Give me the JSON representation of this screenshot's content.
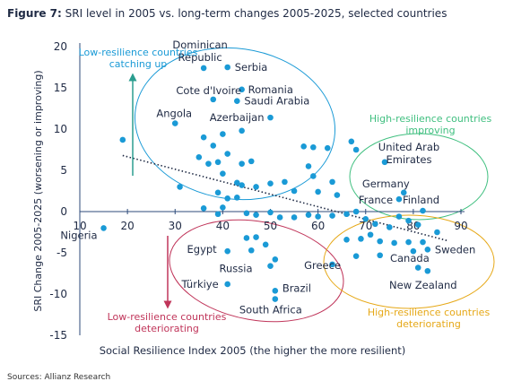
{
  "title_prefix": "Figure 7:",
  "title_text": "SRI level in 2005 vs. long-term changes 2005-2025, selected countries",
  "source": "Sources: Allianz Research",
  "colors": {
    "dot": "#1a9ad6",
    "axis": "#2c4a7a",
    "text": "#1f2a44",
    "trend": "#1f2a44",
    "group_catching_up": "#1a9ad6",
    "group_improving": "#3fbf7f",
    "group_low_deteriorating": "#c0355a",
    "group_high_deteriorating": "#e6a817"
  },
  "chart_data": {
    "type": "scatter",
    "xlabel": "Social Resilience Index 2005 (the higher the more resilient)",
    "ylabel": "SRI Change 2005-2025 (worsening or improving)",
    "xlim": [
      10,
      90
    ],
    "ylim": [
      -15,
      20
    ],
    "xticks": [
      "10",
      "20",
      "30",
      "40",
      "50",
      "60",
      "70",
      "80",
      "90"
    ],
    "yticks": [
      "20",
      "15",
      "10",
      "5",
      "0",
      "-5",
      "-10",
      "-15"
    ],
    "grid": false,
    "trendline": {
      "style": "dotted",
      "x": [
        19,
        87
      ],
      "y": [
        6.8,
        -3.5
      ]
    },
    "groups": [
      {
        "label": "Low-resilience countries\ncatching up",
        "arrow": "up",
        "color_key": "group_catching_up"
      },
      {
        "label": "High-resilience countries\nimproving",
        "color_key": "group_improving"
      },
      {
        "label": "Low-resilience countries\ndeteriorating",
        "arrow": "down",
        "color_key": "group_low_deteriorating"
      },
      {
        "label": "High-resilience countries\ndeteriorating",
        "color_key": "group_high_deteriorating"
      }
    ],
    "points": [
      {
        "x": 36,
        "y": 17.4,
        "label": "Dominican\nRepublic"
      },
      {
        "x": 41,
        "y": 17.5,
        "label": "Serbia"
      },
      {
        "x": 44,
        "y": 14.8,
        "label": "Romania"
      },
      {
        "x": 43,
        "y": 13.4,
        "label": "Saudi Arabia"
      },
      {
        "x": 38,
        "y": 13.6,
        "label": "Cote d'Ivoire"
      },
      {
        "x": 50,
        "y": 11.4,
        "label": "Azerbaijan"
      },
      {
        "x": 30,
        "y": 10.7,
        "label": "Angola"
      },
      {
        "x": 19,
        "y": 8.7,
        "label": ""
      },
      {
        "x": 74,
        "y": 6.0,
        "label": "United Arab\nEmirates"
      },
      {
        "x": 78,
        "y": 2.3,
        "label": "Germany"
      },
      {
        "x": 77,
        "y": 1.5,
        "label": "France"
      },
      {
        "x": 82,
        "y": 0.1,
        "label": "Finland"
      },
      {
        "x": 15,
        "y": -2.0,
        "label": "Nigeria"
      },
      {
        "x": 41,
        "y": -4.8,
        "label": "Egypt"
      },
      {
        "x": 83,
        "y": -4.6,
        "label": "Sweden"
      },
      {
        "x": 80,
        "y": -4.8,
        "label": "Canada"
      },
      {
        "x": 63,
        "y": -6.4,
        "label": "Greece"
      },
      {
        "x": 50,
        "y": -6.6,
        "label": "Russia"
      },
      {
        "x": 41,
        "y": -8.8,
        "label": "Türkiye"
      },
      {
        "x": 51,
        "y": -9.6,
        "label": "Brazil"
      },
      {
        "x": 51,
        "y": -10.6,
        "label": "South Africa"
      },
      {
        "x": 83,
        "y": -7.2,
        "label": "New Zealand"
      },
      {
        "x": 40,
        "y": 9.4,
        "label": ""
      },
      {
        "x": 44,
        "y": 9.8,
        "label": ""
      },
      {
        "x": 36,
        "y": 9.0,
        "label": ""
      },
      {
        "x": 38,
        "y": 8.0,
        "label": ""
      },
      {
        "x": 35,
        "y": 6.6,
        "label": ""
      },
      {
        "x": 37,
        "y": 5.8,
        "label": ""
      },
      {
        "x": 39,
        "y": 6.0,
        "label": ""
      },
      {
        "x": 41,
        "y": 7.0,
        "label": ""
      },
      {
        "x": 44,
        "y": 5.8,
        "label": ""
      },
      {
        "x": 46,
        "y": 6.1,
        "label": ""
      },
      {
        "x": 43,
        "y": 3.5,
        "label": ""
      },
      {
        "x": 40,
        "y": 4.6,
        "label": ""
      },
      {
        "x": 31,
        "y": 3.0,
        "label": ""
      },
      {
        "x": 39,
        "y": 2.3,
        "label": ""
      },
      {
        "x": 41,
        "y": 1.6,
        "label": ""
      },
      {
        "x": 43,
        "y": 1.7,
        "label": ""
      },
      {
        "x": 44,
        "y": 3.2,
        "label": ""
      },
      {
        "x": 47,
        "y": 3.0,
        "label": ""
      },
      {
        "x": 50,
        "y": 3.4,
        "label": ""
      },
      {
        "x": 53,
        "y": 3.6,
        "label": ""
      },
      {
        "x": 55,
        "y": 2.5,
        "label": ""
      },
      {
        "x": 58,
        "y": 5.5,
        "label": ""
      },
      {
        "x": 59,
        "y": 4.3,
        "label": ""
      },
      {
        "x": 59,
        "y": 7.8,
        "label": ""
      },
      {
        "x": 57,
        "y": 7.9,
        "label": ""
      },
      {
        "x": 62,
        "y": 7.7,
        "label": ""
      },
      {
        "x": 67,
        "y": 8.5,
        "label": ""
      },
      {
        "x": 68,
        "y": 7.5,
        "label": ""
      },
      {
        "x": 63,
        "y": 3.6,
        "label": ""
      },
      {
        "x": 60,
        "y": 2.4,
        "label": ""
      },
      {
        "x": 64,
        "y": 2.0,
        "label": ""
      },
      {
        "x": 36,
        "y": 0.4,
        "label": ""
      },
      {
        "x": 39,
        "y": -0.3,
        "label": ""
      },
      {
        "x": 40,
        "y": 0.5,
        "label": ""
      },
      {
        "x": 45,
        "y": -0.2,
        "label": ""
      },
      {
        "x": 47,
        "y": -0.4,
        "label": ""
      },
      {
        "x": 50,
        "y": -0.1,
        "label": ""
      },
      {
        "x": 52,
        "y": -0.7,
        "label": ""
      },
      {
        "x": 55,
        "y": -0.7,
        "label": ""
      },
      {
        "x": 58,
        "y": -0.4,
        "label": ""
      },
      {
        "x": 60,
        "y": -0.6,
        "label": ""
      },
      {
        "x": 63,
        "y": -0.5,
        "label": ""
      },
      {
        "x": 66,
        "y": -0.3,
        "label": ""
      },
      {
        "x": 68,
        "y": 0.0,
        "label": ""
      },
      {
        "x": 70,
        "y": -0.9,
        "label": ""
      },
      {
        "x": 72,
        "y": -1.5,
        "label": ""
      },
      {
        "x": 75,
        "y": -1.9,
        "label": ""
      },
      {
        "x": 77,
        "y": -0.6,
        "label": ""
      },
      {
        "x": 79,
        "y": -1.1,
        "label": ""
      },
      {
        "x": 81,
        "y": -1.6,
        "label": ""
      },
      {
        "x": 85,
        "y": -2.5,
        "label": ""
      },
      {
        "x": 66,
        "y": -3.4,
        "label": ""
      },
      {
        "x": 69,
        "y": -3.3,
        "label": ""
      },
      {
        "x": 71,
        "y": -2.8,
        "label": ""
      },
      {
        "x": 73,
        "y": -3.6,
        "label": ""
      },
      {
        "x": 76,
        "y": -3.8,
        "label": ""
      },
      {
        "x": 79,
        "y": -3.7,
        "label": ""
      },
      {
        "x": 82,
        "y": -3.7,
        "label": ""
      },
      {
        "x": 68,
        "y": -5.4,
        "label": ""
      },
      {
        "x": 73,
        "y": -5.3,
        "label": ""
      },
      {
        "x": 81,
        "y": -6.8,
        "label": ""
      },
      {
        "x": 45,
        "y": -3.2,
        "label": ""
      },
      {
        "x": 47,
        "y": -3.1,
        "label": ""
      },
      {
        "x": 49,
        "y": -4.0,
        "label": ""
      },
      {
        "x": 51,
        "y": -5.8,
        "label": ""
      },
      {
        "x": 46,
        "y": -4.7,
        "label": ""
      }
    ]
  }
}
